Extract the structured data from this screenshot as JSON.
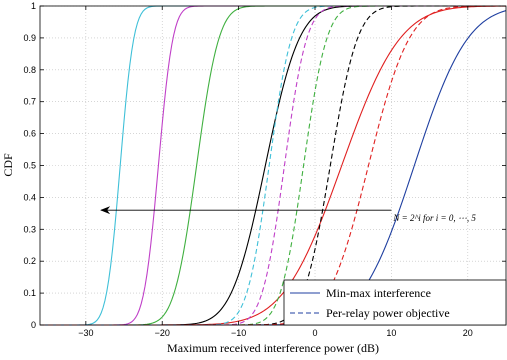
{
  "chart_data": {
    "type": "line",
    "xlabel": "Maximum received interference power (dB)",
    "ylabel": "CDF",
    "xlim": [
      -36,
      25
    ],
    "ylim": [
      0,
      1
    ],
    "xticks": [
      -30,
      -20,
      -10,
      0,
      10,
      20
    ],
    "yticks": [
      0,
      0.1,
      0.2,
      0.3,
      0.4,
      0.5,
      0.6,
      0.7,
      0.8,
      0.9,
      1
    ],
    "grid": true,
    "legend": {
      "placement": "bottom-right",
      "entries": [
        {
          "label": "Min-max interference",
          "style": "solid"
        },
        {
          "label": "Per-relay power objective",
          "style": "dashed"
        }
      ]
    },
    "annotation": {
      "text": "N = 2^i for i = 0, ⋯, 5",
      "arrow_from": [
        10,
        0.36
      ],
      "arrow_to": [
        -28,
        0.36
      ]
    },
    "series": [
      {
        "N": 32,
        "style": "solid",
        "color": "#3fc0d8",
        "mu": -25.5,
        "sigma": 1.4
      },
      {
        "N": 16,
        "style": "solid",
        "color": "#c040c8",
        "mu": -20.5,
        "sigma": 1.5
      },
      {
        "N": 8,
        "style": "solid",
        "color": "#40b040",
        "mu": -15.5,
        "sigma": 2.3
      },
      {
        "N": 4,
        "style": "solid",
        "color": "#000000",
        "mu": -6.5,
        "sigma": 3.5
      },
      {
        "N": 2,
        "style": "solid",
        "color": "#e02020",
        "mu": 3.5,
        "sigma": 6.0
      },
      {
        "N": 1,
        "style": "solid",
        "color": "#1f3fa0",
        "mu": 13.0,
        "sigma": 5.5
      },
      {
        "N": 32,
        "style": "dashed",
        "color": "#3fc0d8",
        "mu": -6.0,
        "sigma": 2.3
      },
      {
        "N": 16,
        "style": "dashed",
        "color": "#c040c8",
        "mu": -4.0,
        "sigma": 2.3
      },
      {
        "N": 8,
        "style": "dashed",
        "color": "#40b040",
        "mu": -1.5,
        "sigma": 2.4
      },
      {
        "N": 4,
        "style": "dashed",
        "color": "#000000",
        "mu": 2.0,
        "sigma": 2.8
      },
      {
        "N": 2,
        "style": "dashed",
        "color": "#e02020",
        "mu": 7.0,
        "sigma": 4.2
      }
    ]
  }
}
